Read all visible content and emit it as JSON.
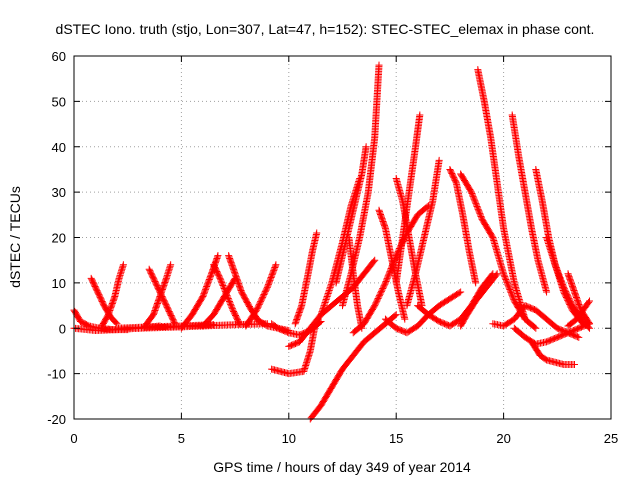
{
  "chart_data": {
    "type": "scatter",
    "title": "dSTEC Iono. truth (stjo, Lon=307, Lat=47, h=152): STEC-STEC_elemax in phase cont.",
    "xlabel": "GPS time / hours of day 349 of year 2014",
    "ylabel": "dSTEC  / TECUs",
    "xlim": [
      0,
      25
    ],
    "ylim": [
      -20,
      60
    ],
    "xticks": [
      0,
      5,
      10,
      15,
      20,
      25
    ],
    "yticks": [
      -20,
      -10,
      0,
      10,
      20,
      30,
      40,
      50,
      60
    ],
    "grid": true,
    "marker": "+",
    "color": "#ff0000",
    "series": [
      {
        "x": [
          0.0,
          0.3,
          0.7,
          1.2,
          1.8,
          2.5
        ],
        "y": [
          4.0,
          1.5,
          0.5,
          0.0,
          -0.3,
          -0.3
        ]
      },
      {
        "x": [
          0.0,
          1.0,
          2.0,
          3.0,
          4.0
        ],
        "y": [
          0.0,
          -0.5,
          -0.3,
          0.0,
          0.5
        ]
      },
      {
        "x": [
          0.8,
          1.1,
          1.4,
          1.7,
          2.0
        ],
        "y": [
          11.0,
          8.0,
          5.0,
          2.5,
          1.0
        ]
      },
      {
        "x": [
          1.3,
          1.6,
          1.9,
          2.1,
          2.3
        ],
        "y": [
          0.5,
          3.0,
          7.0,
          11.0,
          14.0
        ]
      },
      {
        "x": [
          2.0,
          3.5,
          5.0,
          6.5
        ],
        "y": [
          0.0,
          0.3,
          0.5,
          0.8
        ]
      },
      {
        "x": [
          3.5,
          3.8,
          4.1,
          4.4,
          4.7
        ],
        "y": [
          13.0,
          10.0,
          7.0,
          4.0,
          1.0
        ]
      },
      {
        "x": [
          3.3,
          3.7,
          4.0,
          4.3,
          4.5
        ],
        "y": [
          0.5,
          3.0,
          7.0,
          11.0,
          14.0
        ]
      },
      {
        "x": [
          3.0,
          5.0,
          7.0,
          9.0
        ],
        "y": [
          0.0,
          0.3,
          0.7,
          1.0
        ]
      },
      {
        "x": [
          5.0,
          5.5,
          6.0,
          6.4,
          6.7
        ],
        "y": [
          0.0,
          3.0,
          7.0,
          12.0,
          16.0
        ]
      },
      {
        "x": [
          6.5,
          6.8,
          7.1,
          7.4,
          7.7
        ],
        "y": [
          14.0,
          11.0,
          7.5,
          4.0,
          1.0
        ]
      },
      {
        "x": [
          6.0,
          6.5,
          7.0,
          7.5
        ],
        "y": [
          0.5,
          3.0,
          7.0,
          11.0
        ]
      },
      {
        "x": [
          7.2,
          7.5,
          7.8,
          8.2,
          8.6
        ],
        "y": [
          16.0,
          12.0,
          8.0,
          4.5,
          1.5
        ]
      },
      {
        "x": [
          8.0,
          8.5,
          9.0,
          9.4
        ],
        "y": [
          0.5,
          4.0,
          9.0,
          14.0
        ]
      },
      {
        "x": [
          8.5,
          9.0,
          9.5,
          10.0
        ],
        "y": [
          2.0,
          0.5,
          0.0,
          -0.5
        ]
      },
      {
        "x": [
          9.2,
          9.5,
          10.0,
          10.5,
          11.0,
          11.5
        ],
        "y": [
          1.0,
          0.0,
          -1.0,
          -1.5,
          -0.5,
          1.5
        ]
      },
      {
        "x": [
          9.2,
          10.0,
          10.7,
          11.0,
          11.2
        ],
        "y": [
          -9.0,
          -10.0,
          -9.5,
          -5.0,
          0.0
        ]
      },
      {
        "x": [
          10.0,
          10.5,
          11.0,
          11.5,
          12.0,
          12.5,
          13.0,
          13.5,
          14.0
        ],
        "y": [
          -4.0,
          -3.0,
          0.0,
          3.0,
          5.0,
          7.0,
          9.0,
          12.0,
          15.0
        ]
      },
      {
        "x": [
          10.3,
          10.6,
          10.9,
          11.1,
          11.3
        ],
        "y": [
          1.0,
          5.0,
          12.0,
          17.0,
          21.0
        ]
      },
      {
        "x": [
          11.0,
          11.5,
          12.0,
          12.5,
          13.0,
          13.5,
          14.0,
          14.5,
          15.0
        ],
        "y": [
          -20.0,
          -17.0,
          -13.0,
          -9.0,
          -6.0,
          -3.0,
          -1.0,
          1.0,
          3.0
        ]
      },
      {
        "x": [
          11.5,
          12.0,
          12.5,
          12.9,
          13.3
        ],
        "y": [
          3.0,
          10.0,
          19.0,
          27.0,
          33.0
        ]
      },
      {
        "x": [
          12.2,
          12.5,
          12.8,
          13.1,
          13.4,
          13.6
        ],
        "y": [
          10.0,
          16.0,
          22.0,
          28.0,
          34.0,
          40.0
        ]
      },
      {
        "x": [
          12.8,
          13.0,
          13.2,
          13.4
        ],
        "y": [
          20.0,
          12.0,
          5.0,
          0.0
        ]
      },
      {
        "x": [
          12.5,
          12.9,
          13.3,
          13.7,
          14.0,
          14.2
        ],
        "y": [
          5.0,
          12.0,
          20.0,
          30.0,
          42.0,
          58.0
        ]
      },
      {
        "x": [
          13.0,
          13.5,
          14.0,
          14.5,
          15.0,
          15.5,
          16.0,
          16.5
        ],
        "y": [
          -1.0,
          1.0,
          5.0,
          10.0,
          16.0,
          21.0,
          25.0,
          27.0
        ]
      },
      {
        "x": [
          14.2,
          14.5,
          14.8,
          15.1,
          15.4
        ],
        "y": [
          26.0,
          22.0,
          15.0,
          8.0,
          2.0
        ]
      },
      {
        "x": [
          14.5,
          15.0,
          15.5,
          16.0,
          16.5,
          17.0,
          17.5,
          18.0
        ],
        "y": [
          2.0,
          0.0,
          -1.0,
          0.5,
          3.0,
          5.0,
          6.5,
          8.0
        ]
      },
      {
        "x": [
          15.0,
          15.3,
          15.6,
          15.9,
          16.1
        ],
        "y": [
          10.0,
          20.0,
          30.0,
          40.0,
          47.0
        ]
      },
      {
        "x": [
          15.0,
          15.3,
          15.6,
          15.9,
          16.2
        ],
        "y": [
          33.0,
          28.0,
          20.0,
          12.0,
          5.0
        ]
      },
      {
        "x": [
          15.5,
          15.9,
          16.3,
          16.7,
          17.0
        ],
        "y": [
          5.0,
          12.0,
          20.0,
          28.0,
          37.0
        ]
      },
      {
        "x": [
          16.0,
          16.5,
          17.0,
          17.5,
          18.0,
          18.5,
          19.0,
          19.5
        ],
        "y": [
          5.0,
          3.0,
          1.5,
          0.5,
          2.0,
          5.0,
          9.0,
          12.0
        ]
      },
      {
        "x": [
          17.5,
          17.8,
          18.1,
          18.4,
          18.7
        ],
        "y": [
          35.0,
          32.0,
          25.0,
          17.0,
          10.0
        ]
      },
      {
        "x": [
          18.0,
          18.3,
          18.7,
          19.2,
          19.7
        ],
        "y": [
          0.5,
          3.0,
          6.0,
          9.0,
          12.0
        ]
      },
      {
        "x": [
          18.0,
          18.5,
          19.0,
          19.5,
          20.0,
          20.5,
          21.0,
          21.5
        ],
        "y": [
          34.0,
          30.0,
          24.0,
          20.0,
          12.0,
          6.0,
          2.0,
          0.0
        ]
      },
      {
        "x": [
          18.8,
          19.1,
          19.4,
          19.7,
          20.0,
          20.5,
          21.0
        ],
        "y": [
          57.0,
          50.0,
          42.0,
          32.0,
          22.0,
          10.0,
          2.0
        ]
      },
      {
        "x": [
          19.5,
          20.0,
          20.5,
          21.0,
          21.5,
          22.0,
          22.5,
          23.0,
          23.5
        ],
        "y": [
          1.0,
          0.5,
          2.0,
          5.0,
          4.0,
          2.0,
          0.0,
          -1.0,
          -2.0
        ]
      },
      {
        "x": [
          20.4,
          20.7,
          21.0,
          21.3,
          21.6,
          22.0
        ],
        "y": [
          47.0,
          38.0,
          30.0,
          22.0,
          15.0,
          8.0
        ]
      },
      {
        "x": [
          21.3,
          21.7,
          22.0,
          22.4,
          22.8,
          23.3
        ],
        "y": [
          -3.0,
          -6.0,
          -7.0,
          -7.5,
          -8.0,
          -8.0
        ]
      },
      {
        "x": [
          20.5,
          21.0,
          21.5,
          22.0,
          22.5,
          23.0,
          23.5,
          24.0
        ],
        "y": [
          0.0,
          -2.0,
          -3.5,
          -3.0,
          -2.0,
          -1.0,
          0.0,
          1.0
        ]
      },
      {
        "x": [
          21.5,
          21.8,
          22.1,
          22.4,
          22.8,
          23.2,
          23.7
        ],
        "y": [
          35.0,
          28.0,
          20.0,
          14.0,
          8.0,
          4.0,
          1.0
        ]
      },
      {
        "x": [
          22.0,
          22.4,
          22.8,
          23.2,
          23.6,
          24.0
        ],
        "y": [
          20.0,
          14.0,
          9.0,
          5.0,
          2.0,
          0.0
        ]
      },
      {
        "x": [
          23.0,
          23.3,
          23.6,
          24.0
        ],
        "y": [
          12.0,
          8.0,
          4.0,
          1.0
        ]
      },
      {
        "x": [
          23.0,
          23.4,
          23.7,
          24.0
        ],
        "y": [
          0.5,
          2.0,
          4.0,
          6.0
        ]
      }
    ]
  }
}
